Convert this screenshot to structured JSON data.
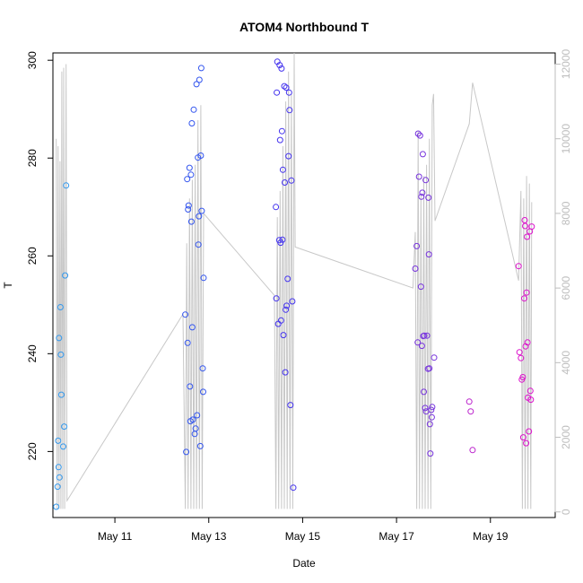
{
  "chart_data": {
    "type": "scatter",
    "title": "ATOM4 Northbound T",
    "xlabel": "Date",
    "ylabel": "T",
    "x_unit": "day of May",
    "xlim": [
      9.68,
      20.38
    ],
    "ylim": [
      206.5,
      301.5
    ],
    "x_ticks": [
      11,
      13,
      15,
      17,
      19
    ],
    "x_tick_labels": [
      "May 11",
      "May 13",
      "May 15",
      "May 17",
      "May 19"
    ],
    "y_ticks": [
      220,
      240,
      260,
      280,
      300
    ],
    "y2_ticks": [
      0,
      2000,
      4000,
      6000,
      8000,
      10000,
      12000
    ],
    "y2lim": [
      -150,
      12300
    ],
    "y2_color": "#bdbdbd",
    "grid": false,
    "legend": "none",
    "series": [
      {
        "color": "#3399ee",
        "points": [
          [
            9.75,
            208.7
          ],
          [
            9.78,
            212.8
          ],
          [
            9.79,
            222.2
          ],
          [
            9.8,
            216.8
          ],
          [
            9.81,
            243.2
          ],
          [
            9.82,
            214.7
          ],
          [
            9.84,
            249.5
          ],
          [
            9.85,
            239.8
          ],
          [
            9.86,
            231.6
          ],
          [
            9.9,
            221.0
          ],
          [
            9.92,
            225.1
          ],
          [
            9.94,
            256.0
          ],
          [
            9.96,
            274.4
          ]
        ]
      },
      {
        "color": "#3355ee",
        "points": [
          [
            12.5,
            248.0
          ],
          [
            12.52,
            219.9
          ],
          [
            12.54,
            275.7
          ],
          [
            12.55,
            242.2
          ],
          [
            12.56,
            269.5
          ],
          [
            12.57,
            270.3
          ],
          [
            12.59,
            278.0
          ],
          [
            12.6,
            233.3
          ],
          [
            12.61,
            226.2
          ],
          [
            12.62,
            276.6
          ],
          [
            12.63,
            267.0
          ],
          [
            12.64,
            287.1
          ],
          [
            12.65,
            245.4
          ],
          [
            12.66,
            226.5
          ],
          [
            12.68,
            289.9
          ],
          [
            12.7,
            223.6
          ],
          [
            12.72,
            224.7
          ],
          [
            12.74,
            295.1
          ],
          [
            12.75,
            227.4
          ],
          [
            12.77,
            280.1
          ],
          [
            12.78,
            262.3
          ],
          [
            12.79,
            268.1
          ],
          [
            12.8,
            296.0
          ],
          [
            12.82,
            221.1
          ],
          [
            12.83,
            280.5
          ],
          [
            12.84,
            298.4
          ],
          [
            12.85,
            269.2
          ],
          [
            12.87,
            237.0
          ],
          [
            12.88,
            232.2
          ],
          [
            12.89,
            255.5
          ]
        ]
      },
      {
        "color": "#4433ee",
        "points": [
          [
            14.43,
            270.0
          ],
          [
            14.44,
            251.3
          ],
          [
            14.45,
            293.4
          ],
          [
            14.46,
            299.7
          ],
          [
            14.48,
            246.1
          ],
          [
            14.5,
            263.2
          ],
          [
            14.51,
            299.0
          ],
          [
            14.52,
            283.7
          ],
          [
            14.53,
            262.7
          ],
          [
            14.54,
            246.8
          ],
          [
            14.55,
            298.3
          ],
          [
            14.56,
            285.5
          ],
          [
            14.57,
            263.3
          ],
          [
            14.58,
            277.6
          ],
          [
            14.59,
            243.8
          ],
          [
            14.61,
            294.7
          ],
          [
            14.62,
            275.0
          ],
          [
            14.63,
            236.2
          ],
          [
            14.64,
            249.0
          ],
          [
            14.65,
            294.4
          ],
          [
            14.66,
            249.8
          ],
          [
            14.68,
            255.3
          ],
          [
            14.7,
            280.4
          ],
          [
            14.71,
            293.4
          ],
          [
            14.72,
            289.8
          ],
          [
            14.74,
            229.5
          ],
          [
            14.76,
            275.4
          ],
          [
            14.78,
            250.7
          ],
          [
            14.8,
            212.6
          ]
        ]
      },
      {
        "color": "#7733dd",
        "points": [
          [
            17.4,
            257.4
          ],
          [
            17.43,
            262.0
          ],
          [
            17.45,
            242.3
          ],
          [
            17.46,
            285.0
          ],
          [
            17.48,
            276.2
          ],
          [
            17.5,
            284.6
          ],
          [
            17.52,
            253.7
          ],
          [
            17.53,
            272.1
          ],
          [
            17.54,
            241.6
          ],
          [
            17.55,
            272.9
          ],
          [
            17.56,
            280.8
          ],
          [
            17.57,
            243.6
          ],
          [
            17.58,
            232.2
          ],
          [
            17.59,
            243.7
          ],
          [
            17.61,
            228.9
          ],
          [
            17.62,
            275.5
          ],
          [
            17.63,
            228.2
          ],
          [
            17.65,
            243.7
          ],
          [
            17.67,
            236.9
          ],
          [
            17.68,
            271.9
          ],
          [
            17.69,
            260.3
          ],
          [
            17.7,
            237.0
          ],
          [
            17.71,
            225.6
          ],
          [
            17.72,
            219.6
          ],
          [
            17.74,
            228.5
          ],
          [
            17.75,
            227.0
          ],
          [
            17.76,
            229.1
          ],
          [
            17.8,
            239.2
          ]
        ]
      },
      {
        "color": "#bb22cc",
        "points": [
          [
            18.55,
            230.2
          ],
          [
            18.58,
            228.2
          ],
          [
            18.62,
            220.3
          ]
        ]
      },
      {
        "color": "#dd11cc",
        "points": [
          [
            19.6,
            257.9
          ],
          [
            19.62,
            240.3
          ],
          [
            19.65,
            239.1
          ],
          [
            19.67,
            234.7
          ],
          [
            19.69,
            235.2
          ],
          [
            19.7,
            222.9
          ],
          [
            19.72,
            251.3
          ],
          [
            19.73,
            267.3
          ],
          [
            19.74,
            266.1
          ],
          [
            19.75,
            241.5
          ],
          [
            19.76,
            221.7
          ],
          [
            19.77,
            252.5
          ],
          [
            19.78,
            263.9
          ],
          [
            19.79,
            242.3
          ],
          [
            19.8,
            231.0
          ],
          [
            19.82,
            224.1
          ],
          [
            19.84,
            265.0
          ],
          [
            19.85,
            232.4
          ],
          [
            19.86,
            230.6
          ],
          [
            19.88,
            266.0
          ]
        ]
      }
    ],
    "secondary_line": {
      "color": "#c8c8c8",
      "axis": "right",
      "points": [
        [
          9.75,
          10000
        ],
        [
          9.77,
          80
        ],
        [
          9.79,
          9800
        ],
        [
          9.81,
          80
        ],
        [
          9.83,
          9400
        ],
        [
          9.85,
          80
        ],
        [
          9.87,
          11800
        ],
        [
          9.89,
          80
        ],
        [
          9.91,
          11900
        ],
        [
          9.93,
          80
        ],
        [
          9.96,
          12000
        ],
        [
          9.98,
          300
        ],
        [
          12.45,
          5300
        ],
        [
          12.5,
          80
        ],
        [
          12.53,
          7200
        ],
        [
          12.56,
          80
        ],
        [
          12.59,
          8400
        ],
        [
          12.62,
          80
        ],
        [
          12.65,
          8900
        ],
        [
          12.68,
          80
        ],
        [
          12.71,
          9300
        ],
        [
          12.74,
          80
        ],
        [
          12.77,
          10500
        ],
        [
          12.8,
          80
        ],
        [
          12.83,
          10900
        ],
        [
          12.86,
          80
        ],
        [
          12.89,
          8000
        ],
        [
          14.4,
          5800
        ],
        [
          14.43,
          80
        ],
        [
          14.46,
          7900
        ],
        [
          14.49,
          80
        ],
        [
          14.52,
          8600
        ],
        [
          14.55,
          80
        ],
        [
          14.58,
          9800
        ],
        [
          14.61,
          80
        ],
        [
          14.64,
          11000
        ],
        [
          14.67,
          80
        ],
        [
          14.7,
          11800
        ],
        [
          14.73,
          80
        ],
        [
          14.76,
          11200
        ],
        [
          14.79,
          80
        ],
        [
          14.82,
          12300
        ],
        [
          14.84,
          7100
        ],
        [
          17.35,
          6000
        ],
        [
          17.4,
          7500
        ],
        [
          17.43,
          80
        ],
        [
          17.46,
          10200
        ],
        [
          17.49,
          80
        ],
        [
          17.52,
          8500
        ],
        [
          17.55,
          80
        ],
        [
          17.58,
          9000
        ],
        [
          17.61,
          80
        ],
        [
          17.64,
          9300
        ],
        [
          17.67,
          80
        ],
        [
          17.7,
          10000
        ],
        [
          17.73,
          80
        ],
        [
          17.76,
          10900
        ],
        [
          17.79,
          11200
        ],
        [
          17.82,
          7800
        ],
        [
          18.55,
          10400
        ],
        [
          18.62,
          11500
        ],
        [
          19.6,
          6200
        ],
        [
          19.65,
          8600
        ],
        [
          19.68,
          80
        ],
        [
          19.71,
          8400
        ],
        [
          19.74,
          80
        ],
        [
          19.77,
          9000
        ],
        [
          19.8,
          80
        ],
        [
          19.83,
          8800
        ],
        [
          19.86,
          80
        ],
        [
          19.88,
          8300
        ]
      ]
    }
  }
}
